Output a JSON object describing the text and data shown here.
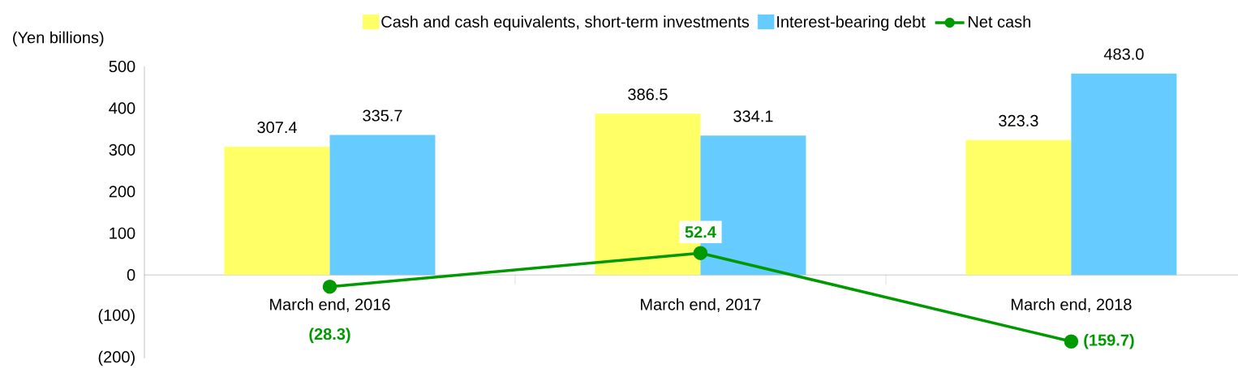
{
  "chart_data": {
    "type": "bar",
    "ylabel": "(Yen billions)",
    "categories": [
      "March end, 2016",
      "March end, 2017",
      "March end, 2018"
    ],
    "series": [
      {
        "name": "Cash and cash equivalents, short-term investments",
        "color": "#ffff66",
        "values": [
          307.4,
          386.5,
          323.3
        ],
        "value_labels": [
          "307.4",
          "386.5",
          "323.3"
        ]
      },
      {
        "name": "Interest-bearing debt",
        "color": "#66ccff",
        "values": [
          335.7,
          334.1,
          483.0
        ],
        "value_labels": [
          "335.7",
          "334.1",
          "483.0"
        ]
      },
      {
        "name": "Net cash",
        "type": "line",
        "color": "#009900",
        "values": [
          -28.3,
          52.4,
          -159.7
        ],
        "value_labels": [
          "(28.3)",
          "52.4",
          "(159.7)"
        ]
      }
    ],
    "ylim": [
      -200,
      500
    ],
    "yticks": [
      {
        "value": -200,
        "label": "(200)"
      },
      {
        "value": -100,
        "label": "(100)"
      },
      0,
      100,
      200,
      300,
      400,
      500
    ],
    "legend": "top",
    "marker": "circle",
    "grid": false
  }
}
